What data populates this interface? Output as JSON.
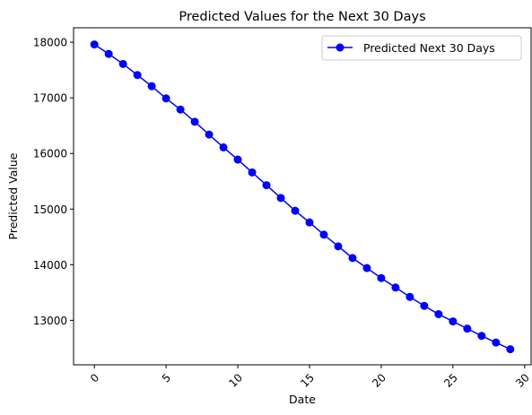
{
  "chart_data": {
    "type": "line",
    "title": "Predicted Values for the Next 30 Days",
    "xlabel": "Date",
    "ylabel": "Predicted Value",
    "xlim": [
      -1.45,
      30.45
    ],
    "ylim": [
      12200,
      18260
    ],
    "x_ticks": [
      0,
      5,
      10,
      15,
      20,
      25,
      30
    ],
    "y_ticks": [
      13000,
      14000,
      15000,
      16000,
      17000,
      18000
    ],
    "x_tick_rotation": 45,
    "grid": false,
    "legend_position": "upper right",
    "series": [
      {
        "name": "Predicted Next 30 Days",
        "color": "#0000ff",
        "marker": "circle",
        "x": [
          0,
          1,
          2,
          3,
          4,
          5,
          6,
          7,
          8,
          9,
          10,
          11,
          12,
          13,
          14,
          15,
          16,
          17,
          18,
          19,
          20,
          21,
          22,
          23,
          24,
          25,
          26,
          27,
          28,
          29
        ],
        "y": [
          17960,
          17790,
          17610,
          17410,
          17210,
          16990,
          16790,
          16570,
          16340,
          16110,
          15890,
          15660,
          15430,
          15200,
          14970,
          14760,
          14540,
          14330,
          14120,
          13940,
          13760,
          13590,
          13420,
          13260,
          13110,
          12980,
          12850,
          12720,
          12600,
          12480
        ]
      }
    ]
  }
}
